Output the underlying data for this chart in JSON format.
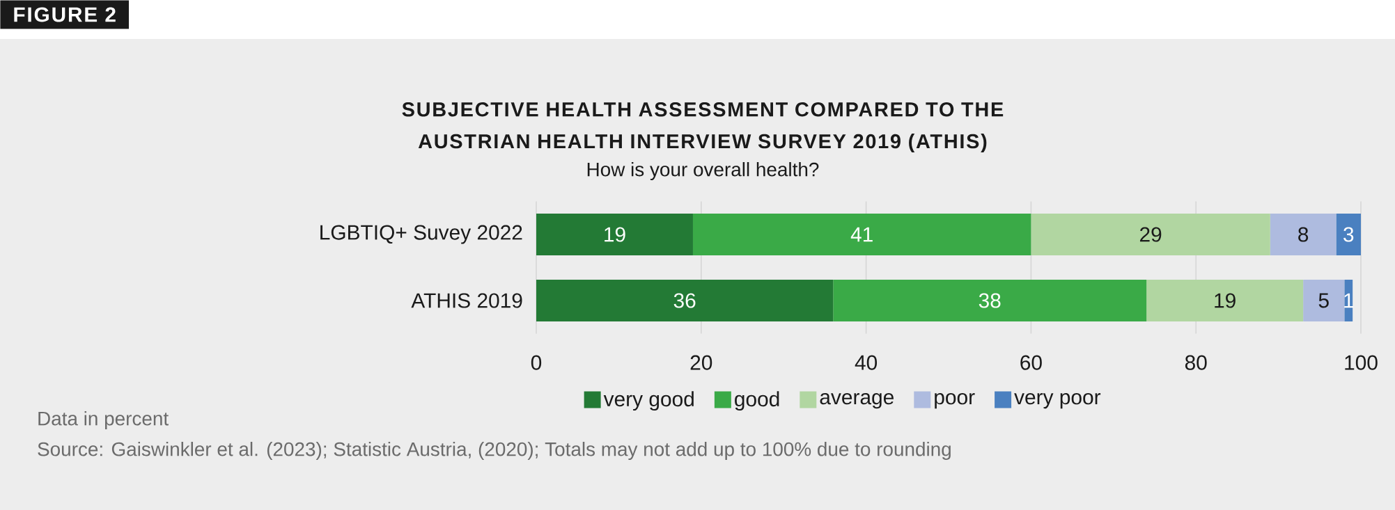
{
  "chart_data": {
    "type": "bar",
    "orientation": "horizontal",
    "stacked": true,
    "title": "SUBJECTIVE HEALTH ASSESSMENT COMPARED TO THE AUSTRIAN HEALTH INTERVIEW SURVEY 2019 (ATHIS)",
    "subtitle": "How is your overall health?",
    "categories": [
      "LGBTIQ+ Suvey 2022",
      "ATHIS 2019"
    ],
    "series": [
      {
        "name": "very good",
        "color": "#237a35",
        "values": [
          19,
          36
        ]
      },
      {
        "name": "good",
        "color": "#3aaa47",
        "values": [
          41,
          38
        ]
      },
      {
        "name": "average",
        "color": "#b1d6a1",
        "values": [
          29,
          19
        ]
      },
      {
        "name": "poor",
        "color": "#aebbdf",
        "values": [
          8,
          5
        ]
      },
      {
        "name": "very poor",
        "color": "#4a80c0",
        "values": [
          3,
          1
        ]
      }
    ],
    "xlim": [
      0,
      100
    ],
    "xticks": [
      0,
      20,
      40,
      60,
      80,
      100
    ],
    "grid": "x",
    "legend": "bottom",
    "data_labels": true,
    "annotations": [
      "FIGURE 2",
      "Data in percent",
      "Source: Gaiswinkler et al. (2023); Statistic Austria, (2020); Totals may not add up to 100% due to rounding"
    ]
  }
}
